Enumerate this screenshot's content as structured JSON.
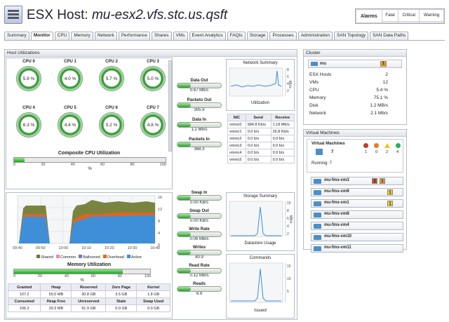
{
  "header": {
    "prefix": "ESX Host:",
    "host": "mu-esx2.vfs.stc.us.qsft"
  },
  "alarms": {
    "label": "Alarms",
    "cols": [
      "Fatal",
      "Critical",
      "Warning"
    ]
  },
  "tabs": [
    "Summary",
    "Monitor",
    "CPU",
    "Memory",
    "Network",
    "Performance",
    "Shares",
    "VMs",
    "Event Analytics",
    "FAQts",
    "Storage",
    "Processes",
    "Administration",
    "SAN Topology",
    "SAN Data Paths"
  ],
  "host_util": {
    "title": "Host Utilizations",
    "cpus": [
      {
        "name": "CPU 0",
        "pct": "5.9 %"
      },
      {
        "name": "CPU 1",
        "pct": "4.0 %"
      },
      {
        "name": "CPU 2",
        "pct": "5.7 %"
      },
      {
        "name": "CPU 3",
        "pct": "5.0 %"
      },
      {
        "name": "CPU 4",
        "pct": "6.3 %"
      },
      {
        "name": "CPU 5",
        "pct": "4.4 %"
      },
      {
        "name": "CPU 6",
        "pct": "5.2 %"
      },
      {
        "name": "CPU 7",
        "pct": "4.8 %"
      }
    ],
    "composite": {
      "title": "Composite CPU Utilization",
      "value": 0.07,
      "ticks": [
        "0",
        "20",
        "40",
        "60",
        "80",
        "100"
      ],
      "unit": "%"
    }
  },
  "memory": {
    "x_ticks": [
      "09:40",
      "09:50",
      "10:00",
      "10:10",
      "10:20",
      "10:30",
      "10:40"
    ],
    "y_ticks": [
      "16",
      "12",
      "8",
      "4",
      "0"
    ],
    "legend": [
      {
        "name": "Shared",
        "color": "#6b7a3c"
      },
      {
        "name": "Common",
        "color": "#e88bb0"
      },
      {
        "name": "Ballooned",
        "color": "#7777cc"
      },
      {
        "name": "Overhead",
        "color": "#e0661f"
      },
      {
        "name": "Active",
        "color": "#3e8fd8"
      }
    ],
    "title": "Memory Utilization",
    "value": 0.8,
    "ticks": [
      "0",
      "20",
      "40",
      "60",
      "80",
      "100"
    ],
    "unit": "%",
    "table": [
      [
        "Granted",
        "Heap",
        "Reserved",
        "Zero Page",
        "Kernel"
      ],
      [
        "107.2",
        "50.0 MB",
        "30.8 GB",
        "3.5 GB",
        "1.8 GB"
      ],
      [
        "Consumed",
        "Heap Free",
        "Unreserved",
        "State",
        "Swap Used"
      ],
      [
        "106.2",
        "29.3 MB",
        "91.9 GB",
        "0.0 GB",
        "0.0 GB"
      ]
    ]
  },
  "net_metrics": [
    {
      "label": "Data Out",
      "value": "0.67 Mb/s"
    },
    {
      "label": "Packets Out",
      "value": "305.9"
    },
    {
      "label": "Data In",
      "value": "1.2 Mb/s"
    },
    {
      "label": "Packets In",
      "value": "368.3"
    }
  ],
  "disk_metrics": [
    {
      "label": "Swap In",
      "value": "0.00 KB/s"
    },
    {
      "label": "Swap Out",
      "value": "0.00 KB/s"
    },
    {
      "label": "Write Rate",
      "value": "0.06 MB/s"
    },
    {
      "label": "Writes",
      "value": "40.9"
    },
    {
      "label": "Read Rate",
      "value": "0.12 MB/s"
    },
    {
      "label": "Reads",
      "value": "6.9"
    }
  ],
  "network_summary": {
    "title": "Network Summary",
    "caption": "Utilization",
    "unit": "Mb/s",
    "y_ticks": [
      "8",
      "6",
      "4",
      "2"
    ]
  },
  "nic_table": {
    "headers": [
      "NIC",
      "Send",
      "Receive"
    ],
    "rows": [
      [
        "vmnic0",
        "684.8 Kb/s",
        "1.18 Mb/s"
      ],
      [
        "vmnic1",
        "0.0 b/s",
        "26.8 Kb/s"
      ],
      [
        "vmnic2",
        "0.0 b/s",
        "0.0 b/s"
      ],
      [
        "vmnic3",
        "0.0 b/s",
        "0.0 b/s"
      ],
      [
        "vmnic4",
        "0.0 b/s",
        "0.0 b/s"
      ],
      [
        "vmnic5",
        "0.0 b/s",
        "0.0 b/s"
      ]
    ]
  },
  "storage_summary": {
    "title": "Storage Summary",
    "caption": "Datastore Usage",
    "unit": "MB/s",
    "y_ticks": [
      "10",
      "8",
      "6",
      "4",
      "2"
    ]
  },
  "commands": {
    "title": "Commands",
    "caption": "Issued",
    "y_ticks": [
      "15",
      "10",
      "5"
    ]
  },
  "cluster": {
    "title": "Cluster",
    "name": "mu",
    "badge": "1",
    "rows": [
      {
        "label": "ESX Hosts",
        "value": "2"
      },
      {
        "label": "VMs",
        "value": "12"
      },
      {
        "label": "CPU",
        "value": "5.4 %"
      },
      {
        "label": "Memory",
        "value": "75.1 %"
      },
      {
        "label": "Disk",
        "value": "1.2 MB/s"
      },
      {
        "label": "Network",
        "value": "2.1 Mb/s"
      }
    ]
  },
  "virtual_machines": {
    "title": "Virtual Machines",
    "label": "Virtual Machines",
    "count": "7",
    "running": "Running: 7",
    "alarm_counts": [
      "1",
      "0",
      "2",
      "4"
    ],
    "list": [
      {
        "name": "mu-fms-vm3",
        "badges": [
          "1",
          "1"
        ],
        "colors": [
          "#d9472b",
          "#e8a020"
        ]
      },
      {
        "name": "mu-fms-vm9",
        "badges": [
          "1"
        ],
        "colors": [
          "#f5d224"
        ]
      },
      {
        "name": "mu-fms-vm1",
        "badges": [
          "1"
        ],
        "colors": [
          "#f5d224"
        ]
      },
      {
        "name": "mu-fms-vm8",
        "badges": [],
        "colors": []
      },
      {
        "name": "mu-fms-vm4",
        "badges": [],
        "colors": []
      },
      {
        "name": "mu-fms-vm10",
        "badges": [],
        "colors": []
      },
      {
        "name": "mu-fms-vm11",
        "badges": [],
        "colors": []
      }
    ]
  }
}
